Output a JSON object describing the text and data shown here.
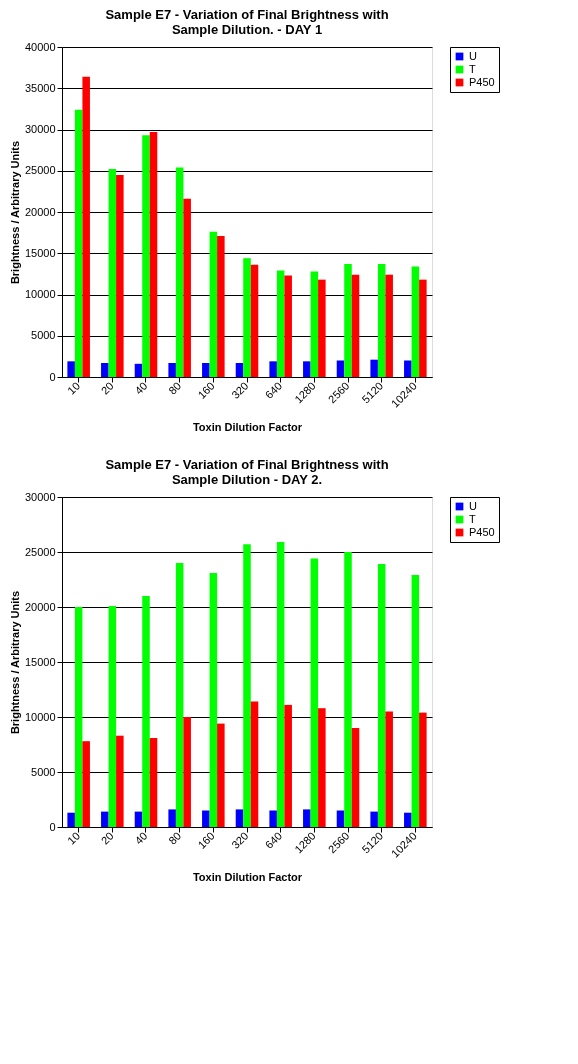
{
  "chart_data": [
    {
      "type": "bar",
      "title": "Sample E7 - Variation of Final Brightness with Sample Dilution.  - DAY 1",
      "xlabel": "Toxin Dilution Factor",
      "ylabel": "Brightness / Arbitrary Units",
      "categories": [
        "10",
        "20",
        "40",
        "80",
        "160",
        "320",
        "640",
        "1280",
        "2560",
        "5120",
        "10240"
      ],
      "series": [
        {
          "name": "U",
          "color": "#0000ff",
          "values": [
            1900,
            1700,
            1600,
            1700,
            1700,
            1700,
            1900,
            1900,
            2000,
            2100,
            2000
          ]
        },
        {
          "name": "T",
          "color": "#00ff00",
          "values": [
            32400,
            25200,
            29300,
            25400,
            17600,
            14400,
            12900,
            12800,
            13700,
            13700,
            13400
          ]
        },
        {
          "name": "P450",
          "color": "#ff0000",
          "values": [
            36400,
            24500,
            29700,
            21600,
            17100,
            13600,
            12300,
            11800,
            12400,
            12400,
            11800
          ]
        }
      ],
      "ylim": [
        0,
        40000
      ],
      "yticks": [
        0,
        5000,
        10000,
        15000,
        20000,
        25000,
        30000,
        35000,
        40000
      ],
      "grid": "y",
      "legend": "right"
    },
    {
      "type": "bar",
      "title": "Sample E7 - Variation of Final Brightness with Sample Dilution - DAY 2.",
      "xlabel": "Toxin Dilution Factor",
      "ylabel": "Brightness / Arbitrary Units",
      "categories": [
        "10",
        "20",
        "40",
        "80",
        "160",
        "320",
        "640",
        "1280",
        "2560",
        "5120",
        "10240"
      ],
      "series": [
        {
          "name": "U",
          "color": "#0000ff",
          "values": [
            1300,
            1400,
            1400,
            1600,
            1500,
            1600,
            1500,
            1600,
            1500,
            1400,
            1300
          ]
        },
        {
          "name": "T",
          "color": "#00ff00",
          "values": [
            20000,
            20100,
            21000,
            24000,
            23100,
            25700,
            25900,
            24400,
            25000,
            23900,
            22900
          ]
        },
        {
          "name": "P450",
          "color": "#ff0000",
          "values": [
            7800,
            8300,
            8100,
            10000,
            9400,
            11400,
            11100,
            10800,
            9000,
            10500,
            10400
          ]
        }
      ],
      "ylim": [
        0,
        30000
      ],
      "yticks": [
        0,
        5000,
        10000,
        15000,
        20000,
        25000,
        30000
      ],
      "grid": "y",
      "legend": "right"
    }
  ]
}
